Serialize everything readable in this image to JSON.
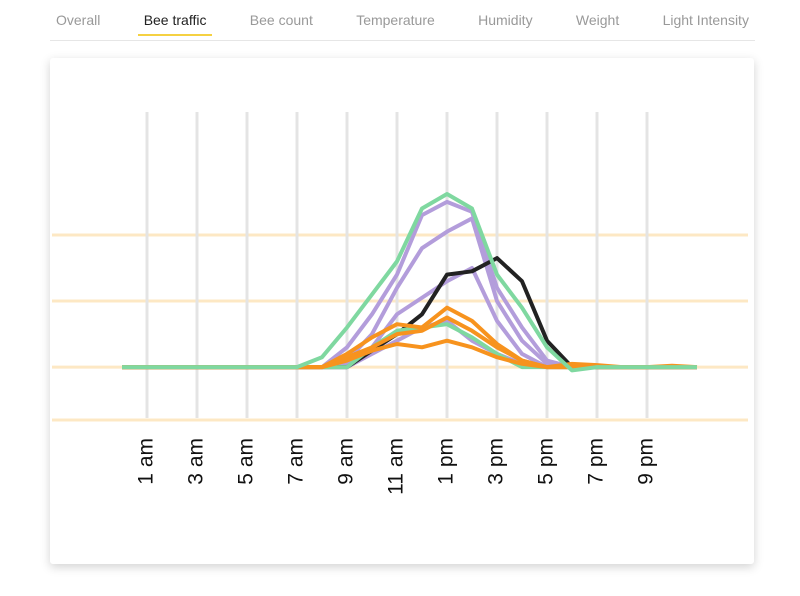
{
  "tabs": {
    "items": [
      "Overall",
      "Bee traffic",
      "Bee count",
      "Temperature",
      "Humidity",
      "Weight",
      "Light Intensity"
    ],
    "active": 1
  },
  "chart_data": {
    "type": "line",
    "x": [
      0,
      1,
      2,
      3,
      4,
      5,
      6,
      7,
      8,
      9,
      10,
      11,
      12,
      13,
      14,
      15,
      16,
      17,
      18,
      19,
      20,
      21,
      22,
      23
    ],
    "xlim": [
      0,
      23
    ],
    "xticks": [
      {
        "value": 1,
        "label": "1 am"
      },
      {
        "value": 3,
        "label": "3 am"
      },
      {
        "value": 5,
        "label": "5 am"
      },
      {
        "value": 7,
        "label": "7 am"
      },
      {
        "value": 9,
        "label": "9 am"
      },
      {
        "value": 11,
        "label": "11 am"
      },
      {
        "value": 13,
        "label": "1 pm"
      },
      {
        "value": 15,
        "label": "3 pm"
      },
      {
        "value": 17,
        "label": "5 pm"
      },
      {
        "value": 19,
        "label": "7 pm"
      },
      {
        "value": 21,
        "label": "9 pm"
      }
    ],
    "ylim": [
      -80,
      380
    ],
    "yticks": [
      -80,
      0,
      100,
      200
    ],
    "grid": true,
    "series": [
      {
        "color": "#b39ddb",
        "values": [
          0,
          0,
          0,
          0,
          0,
          0,
          0,
          0,
          0,
          30,
          80,
          140,
          230,
          250,
          235,
          120,
          60,
          10,
          0,
          0,
          0,
          0,
          0,
          0
        ]
      },
      {
        "color": "#b39ddb",
        "values": [
          0,
          0,
          0,
          0,
          0,
          0,
          0,
          0,
          0,
          10,
          50,
          120,
          180,
          205,
          225,
          100,
          40,
          5,
          0,
          0,
          0,
          0,
          0,
          0
        ]
      },
      {
        "color": "#b39ddb",
        "values": [
          0,
          0,
          0,
          0,
          0,
          0,
          0,
          0,
          0,
          5,
          30,
          80,
          105,
          130,
          150,
          70,
          20,
          0,
          0,
          0,
          0,
          0,
          0,
          0
        ]
      },
      {
        "color": "#b39ddb",
        "values": [
          0,
          0,
          0,
          0,
          0,
          0,
          0,
          0,
          0,
          0,
          20,
          40,
          60,
          70,
          40,
          20,
          5,
          0,
          0,
          0,
          0,
          0,
          0,
          0
        ]
      },
      {
        "color": "#222222",
        "values": [
          0,
          0,
          0,
          0,
          0,
          0,
          0,
          0,
          0,
          0,
          25,
          50,
          80,
          140,
          145,
          165,
          130,
          40,
          0,
          0,
          0,
          0,
          0,
          0
        ]
      },
      {
        "color": "#7fd8a0",
        "values": [
          0,
          0,
          0,
          0,
          0,
          0,
          0,
          0,
          0,
          0,
          30,
          55,
          60,
          65,
          45,
          20,
          0,
          0,
          0,
          0,
          0,
          0,
          0,
          0
        ]
      },
      {
        "color": "#f7931e",
        "values": [
          0,
          0,
          0,
          0,
          0,
          0,
          0,
          0,
          0,
          20,
          45,
          65,
          60,
          90,
          70,
          35,
          10,
          0,
          5,
          3,
          0,
          0,
          2,
          0
        ]
      },
      {
        "color": "#f7931e",
        "values": [
          0,
          0,
          0,
          0,
          0,
          0,
          0,
          0,
          0,
          15,
          30,
          50,
          55,
          75,
          55,
          30,
          10,
          0,
          0,
          0,
          0,
          0,
          0,
          0
        ]
      },
      {
        "color": "#f7931e",
        "values": [
          0,
          0,
          0,
          0,
          0,
          0,
          0,
          0,
          0,
          10,
          25,
          35,
          30,
          40,
          30,
          15,
          5,
          0,
          0,
          0,
          0,
          0,
          0,
          0
        ]
      },
      {
        "color": "#7fd8a0",
        "values": [
          0,
          0,
          0,
          0,
          0,
          0,
          0,
          0,
          15,
          60,
          110,
          160,
          240,
          262,
          240,
          140,
          90,
          30,
          -5,
          0,
          0,
          0,
          0,
          0
        ]
      }
    ]
  }
}
